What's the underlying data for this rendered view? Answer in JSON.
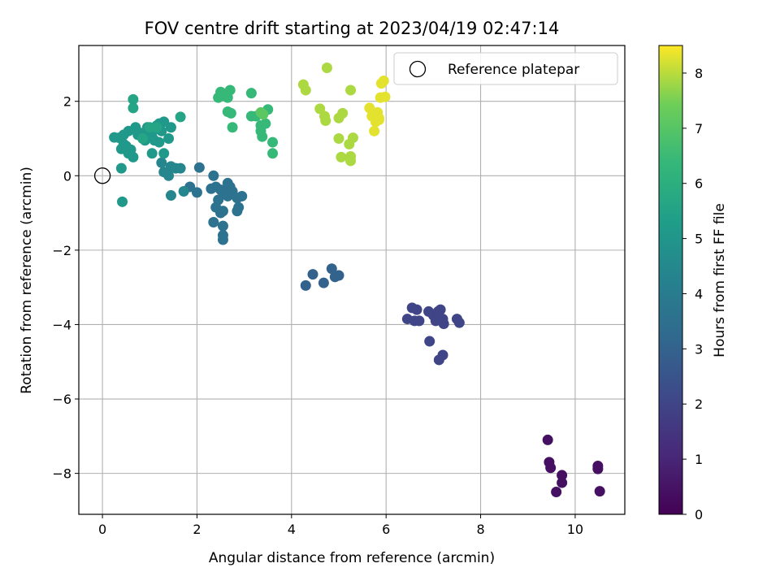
{
  "chart_data": {
    "type": "scatter",
    "title": "FOV centre drift starting at 2023/04/19 02:47:14",
    "xlabel": "Angular distance from reference (arcmin)",
    "ylabel": "Rotation from reference (arcmin)",
    "xlim": [
      -0.5,
      11.05
    ],
    "ylim": [
      -9.1,
      3.5
    ],
    "xticks": [
      0,
      2,
      4,
      6,
      8,
      10
    ],
    "yticks": [
      -8,
      -6,
      -4,
      -2,
      0,
      2
    ],
    "grid": true,
    "legend": {
      "position": "top-right",
      "entries": [
        "Reference platepar"
      ]
    },
    "colorbar": {
      "label": "Hours from first FF file",
      "range": [
        0,
        8.5
      ],
      "ticks": [
        0,
        1,
        2,
        3,
        4,
        5,
        6,
        7,
        8
      ],
      "colormap": "viridis"
    },
    "reference_point": {
      "x": 0,
      "y": 0,
      "label": "Reference platepar"
    },
    "series": [
      {
        "color_value": 0.4,
        "points": [
          [
            9.42,
            -7.1
          ],
          [
            9.45,
            -7.7
          ],
          [
            9.48,
            -7.85
          ],
          [
            9.6,
            -8.5
          ],
          [
            9.72,
            -8.05
          ],
          [
            9.72,
            -8.25
          ],
          [
            10.48,
            -7.8
          ],
          [
            10.48,
            -7.88
          ],
          [
            10.52,
            -8.48
          ]
        ]
      },
      {
        "color_value": 2.0,
        "points": [
          [
            6.45,
            -3.85
          ],
          [
            6.55,
            -3.55
          ],
          [
            6.6,
            -3.9
          ],
          [
            6.65,
            -3.6
          ],
          [
            6.7,
            -3.9
          ],
          [
            6.9,
            -3.65
          ],
          [
            7.0,
            -3.75
          ],
          [
            7.05,
            -3.9
          ],
          [
            7.1,
            -3.65
          ],
          [
            7.15,
            -3.6
          ],
          [
            7.2,
            -3.85
          ],
          [
            7.22,
            -3.98
          ],
          [
            7.5,
            -3.85
          ],
          [
            7.55,
            -3.95
          ],
          [
            6.92,
            -4.45
          ],
          [
            7.12,
            -4.95
          ],
          [
            7.2,
            -4.82
          ]
        ]
      },
      {
        "color_value": 3.0,
        "points": [
          [
            4.3,
            -2.95
          ],
          [
            4.45,
            -2.65
          ],
          [
            4.68,
            -2.88
          ],
          [
            4.85,
            -2.5
          ],
          [
            4.92,
            -2.72
          ],
          [
            5.0,
            -2.68
          ]
        ]
      },
      {
        "color_value": 3.6,
        "points": [
          [
            2.05,
            0.22
          ],
          [
            2.35,
            0.0
          ],
          [
            2.4,
            -0.3
          ],
          [
            2.5,
            -0.38
          ],
          [
            2.55,
            -0.42
          ],
          [
            2.6,
            -0.5
          ],
          [
            2.65,
            -0.55
          ],
          [
            2.7,
            -0.3
          ],
          [
            2.75,
            -0.42
          ],
          [
            2.85,
            -0.6
          ],
          [
            2.95,
            -0.55
          ],
          [
            2.45,
            -0.65
          ],
          [
            2.4,
            -0.85
          ],
          [
            2.5,
            -1.0
          ],
          [
            2.55,
            -0.95
          ],
          [
            2.85,
            -0.95
          ],
          [
            2.88,
            -0.85
          ],
          [
            2.35,
            -1.25
          ],
          [
            2.55,
            -1.35
          ],
          [
            2.55,
            -1.6
          ],
          [
            2.55,
            -1.72
          ],
          [
            2.65,
            -0.2
          ],
          [
            2.3,
            -0.35
          ],
          [
            2.0,
            -0.45
          ],
          [
            1.85,
            -0.3
          ]
        ]
      },
      {
        "color_value": 4.4,
        "points": [
          [
            1.3,
            0.1
          ],
          [
            1.4,
            0.0
          ],
          [
            1.45,
            0.25
          ],
          [
            1.55,
            0.2
          ],
          [
            1.65,
            0.2
          ],
          [
            1.45,
            -0.53
          ],
          [
            1.72,
            -0.42
          ],
          [
            1.25,
            0.35
          ]
        ]
      },
      {
        "color_value": 5.1,
        "points": [
          [
            0.25,
            1.03
          ],
          [
            0.35,
            1.02
          ],
          [
            0.4,
            0.72
          ],
          [
            0.45,
            0.85
          ],
          [
            0.45,
            1.1
          ],
          [
            0.5,
            0.8
          ],
          [
            0.55,
            1.2
          ],
          [
            0.55,
            0.6
          ],
          [
            0.6,
            0.7
          ],
          [
            0.65,
            0.5
          ],
          [
            0.7,
            1.3
          ],
          [
            0.75,
            1.1
          ],
          [
            0.8,
            1.15
          ],
          [
            0.9,
            0.95
          ],
          [
            0.95,
            1.3
          ],
          [
            1.0,
            1.15
          ],
          [
            1.05,
            1.05
          ],
          [
            1.1,
            0.95
          ],
          [
            1.1,
            1.25
          ],
          [
            1.15,
            1.35
          ],
          [
            1.2,
            1.4
          ],
          [
            1.25,
            1.2
          ],
          [
            1.3,
            1.45
          ],
          [
            1.05,
            0.6
          ],
          [
            1.2,
            0.9
          ],
          [
            1.3,
            0.6
          ],
          [
            1.4,
            1.0
          ],
          [
            1.45,
            1.3
          ],
          [
            0.4,
            0.2
          ],
          [
            0.42,
            -0.7
          ]
        ]
      },
      {
        "color_value": 5.6,
        "points": [
          [
            0.65,
            2.05
          ],
          [
            0.65,
            1.82
          ],
          [
            1.65,
            1.58
          ],
          [
            1.15,
            1.3
          ],
          [
            0.85,
            1.0
          ],
          [
            1.0,
            1.3
          ]
        ]
      },
      {
        "color_value": 6.4,
        "points": [
          [
            2.45,
            2.1
          ],
          [
            2.5,
            2.25
          ],
          [
            2.55,
            2.15
          ],
          [
            2.6,
            2.2
          ],
          [
            2.65,
            2.1
          ],
          [
            2.7,
            2.3
          ],
          [
            2.65,
            1.72
          ],
          [
            2.72,
            1.68
          ],
          [
            2.75,
            1.3
          ],
          [
            3.15,
            2.22
          ],
          [
            3.15,
            1.6
          ],
          [
            3.25,
            1.6
          ],
          [
            3.35,
            1.35
          ],
          [
            3.35,
            1.2
          ],
          [
            3.38,
            1.05
          ],
          [
            3.45,
            1.4
          ],
          [
            3.5,
            1.78
          ],
          [
            3.6,
            0.9
          ],
          [
            3.6,
            0.6
          ]
        ]
      },
      {
        "color_value": 7.1,
        "points": [
          [
            3.35,
            1.7
          ],
          [
            3.4,
            1.65
          ]
        ]
      },
      {
        "color_value": 7.9,
        "points": [
          [
            4.25,
            2.45
          ],
          [
            4.3,
            2.3
          ],
          [
            4.75,
            2.9
          ],
          [
            4.6,
            1.8
          ],
          [
            4.7,
            1.6
          ],
          [
            4.72,
            1.48
          ],
          [
            5.0,
            1.55
          ],
          [
            5.08,
            1.68
          ],
          [
            5.0,
            1.0
          ],
          [
            5.05,
            0.5
          ],
          [
            5.22,
            0.85
          ],
          [
            5.25,
            0.52
          ],
          [
            5.25,
            0.4
          ],
          [
            5.3,
            1.02
          ],
          [
            5.25,
            2.3
          ]
        ]
      },
      {
        "color_value": 8.3,
        "points": [
          [
            5.65,
            1.82
          ],
          [
            5.7,
            1.6
          ],
          [
            5.75,
            1.2
          ],
          [
            5.78,
            1.45
          ],
          [
            5.82,
            1.7
          ],
          [
            5.85,
            1.5
          ],
          [
            5.88,
            2.1
          ],
          [
            5.9,
            2.48
          ],
          [
            5.95,
            2.55
          ],
          [
            5.98,
            2.12
          ],
          [
            5.85,
            1.55
          ]
        ]
      }
    ]
  }
}
